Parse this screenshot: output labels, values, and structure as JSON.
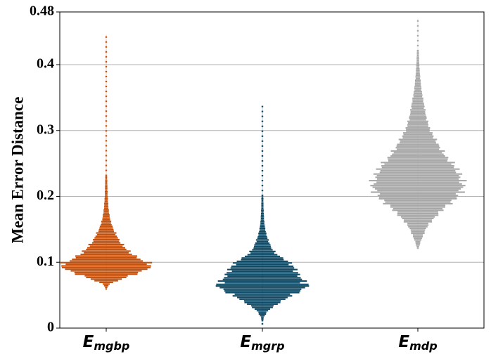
{
  "chart_data": {
    "type": "violin",
    "ylabel": "Mean Error Distance",
    "ylim": [
      0,
      0.48
    ],
    "yticks": [
      "0",
      "0.1",
      "0.2",
      "0.3",
      "0.4",
      "0.48"
    ],
    "grid": "horizontal",
    "categories": [
      {
        "main": "E",
        "sub": "mgbp"
      },
      {
        "main": "E",
        "sub": "mgrp"
      },
      {
        "main": "E",
        "sub": "mdp"
      }
    ],
    "series": [
      {
        "color": "#c4520e",
        "min": 0.058,
        "max": 0.445,
        "mode": 0.095,
        "profile": [
          [
            0.058,
            0.01
          ],
          [
            0.065,
            0.06
          ],
          [
            0.072,
            0.3
          ],
          [
            0.08,
            0.6
          ],
          [
            0.088,
            0.9
          ],
          [
            0.095,
            1.0
          ],
          [
            0.102,
            0.78
          ],
          [
            0.11,
            0.58
          ],
          [
            0.12,
            0.42
          ],
          [
            0.13,
            0.3
          ],
          [
            0.14,
            0.22
          ],
          [
            0.15,
            0.15
          ],
          [
            0.16,
            0.1
          ],
          [
            0.17,
            0.07
          ],
          [
            0.18,
            0.05
          ],
          [
            0.2,
            0.03
          ],
          [
            0.23,
            0.02
          ],
          [
            0.26,
            0.01
          ],
          [
            0.29,
            0.012
          ],
          [
            0.32,
            0.004
          ],
          [
            0.445,
            0.004
          ]
        ]
      },
      {
        "color": "#0f4a66",
        "min": 0.005,
        "max": 0.335,
        "mode": 0.062,
        "profile": [
          [
            0.005,
            0.01
          ],
          [
            0.015,
            0.03
          ],
          [
            0.025,
            0.12
          ],
          [
            0.035,
            0.32
          ],
          [
            0.045,
            0.55
          ],
          [
            0.055,
            0.82
          ],
          [
            0.062,
            1.0
          ],
          [
            0.07,
            0.9
          ],
          [
            0.08,
            0.78
          ],
          [
            0.09,
            0.7
          ],
          [
            0.1,
            0.56
          ],
          [
            0.11,
            0.32
          ],
          [
            0.12,
            0.2
          ],
          [
            0.13,
            0.14
          ],
          [
            0.14,
            0.09
          ],
          [
            0.15,
            0.06
          ],
          [
            0.16,
            0.04
          ],
          [
            0.18,
            0.025
          ],
          [
            0.2,
            0.02
          ],
          [
            0.22,
            0.015
          ],
          [
            0.25,
            0.012
          ],
          [
            0.28,
            0.006
          ],
          [
            0.335,
            0.004
          ]
        ]
      },
      {
        "color": "#a8a8a8",
        "min": 0.12,
        "max": 0.47,
        "mode": 0.215,
        "profile": [
          [
            0.12,
            0.02
          ],
          [
            0.13,
            0.06
          ],
          [
            0.14,
            0.12
          ],
          [
            0.15,
            0.18
          ],
          [
            0.16,
            0.28
          ],
          [
            0.17,
            0.42
          ],
          [
            0.18,
            0.55
          ],
          [
            0.19,
            0.74
          ],
          [
            0.2,
            0.88
          ],
          [
            0.215,
            1.0
          ],
          [
            0.23,
            0.92
          ],
          [
            0.245,
            0.8
          ],
          [
            0.26,
            0.6
          ],
          [
            0.275,
            0.46
          ],
          [
            0.29,
            0.34
          ],
          [
            0.3,
            0.26
          ],
          [
            0.32,
            0.18
          ],
          [
            0.34,
            0.13
          ],
          [
            0.36,
            0.08
          ],
          [
            0.38,
            0.05
          ],
          [
            0.4,
            0.03
          ],
          [
            0.43,
            0.015
          ],
          [
            0.47,
            0.005
          ]
        ]
      }
    ]
  }
}
